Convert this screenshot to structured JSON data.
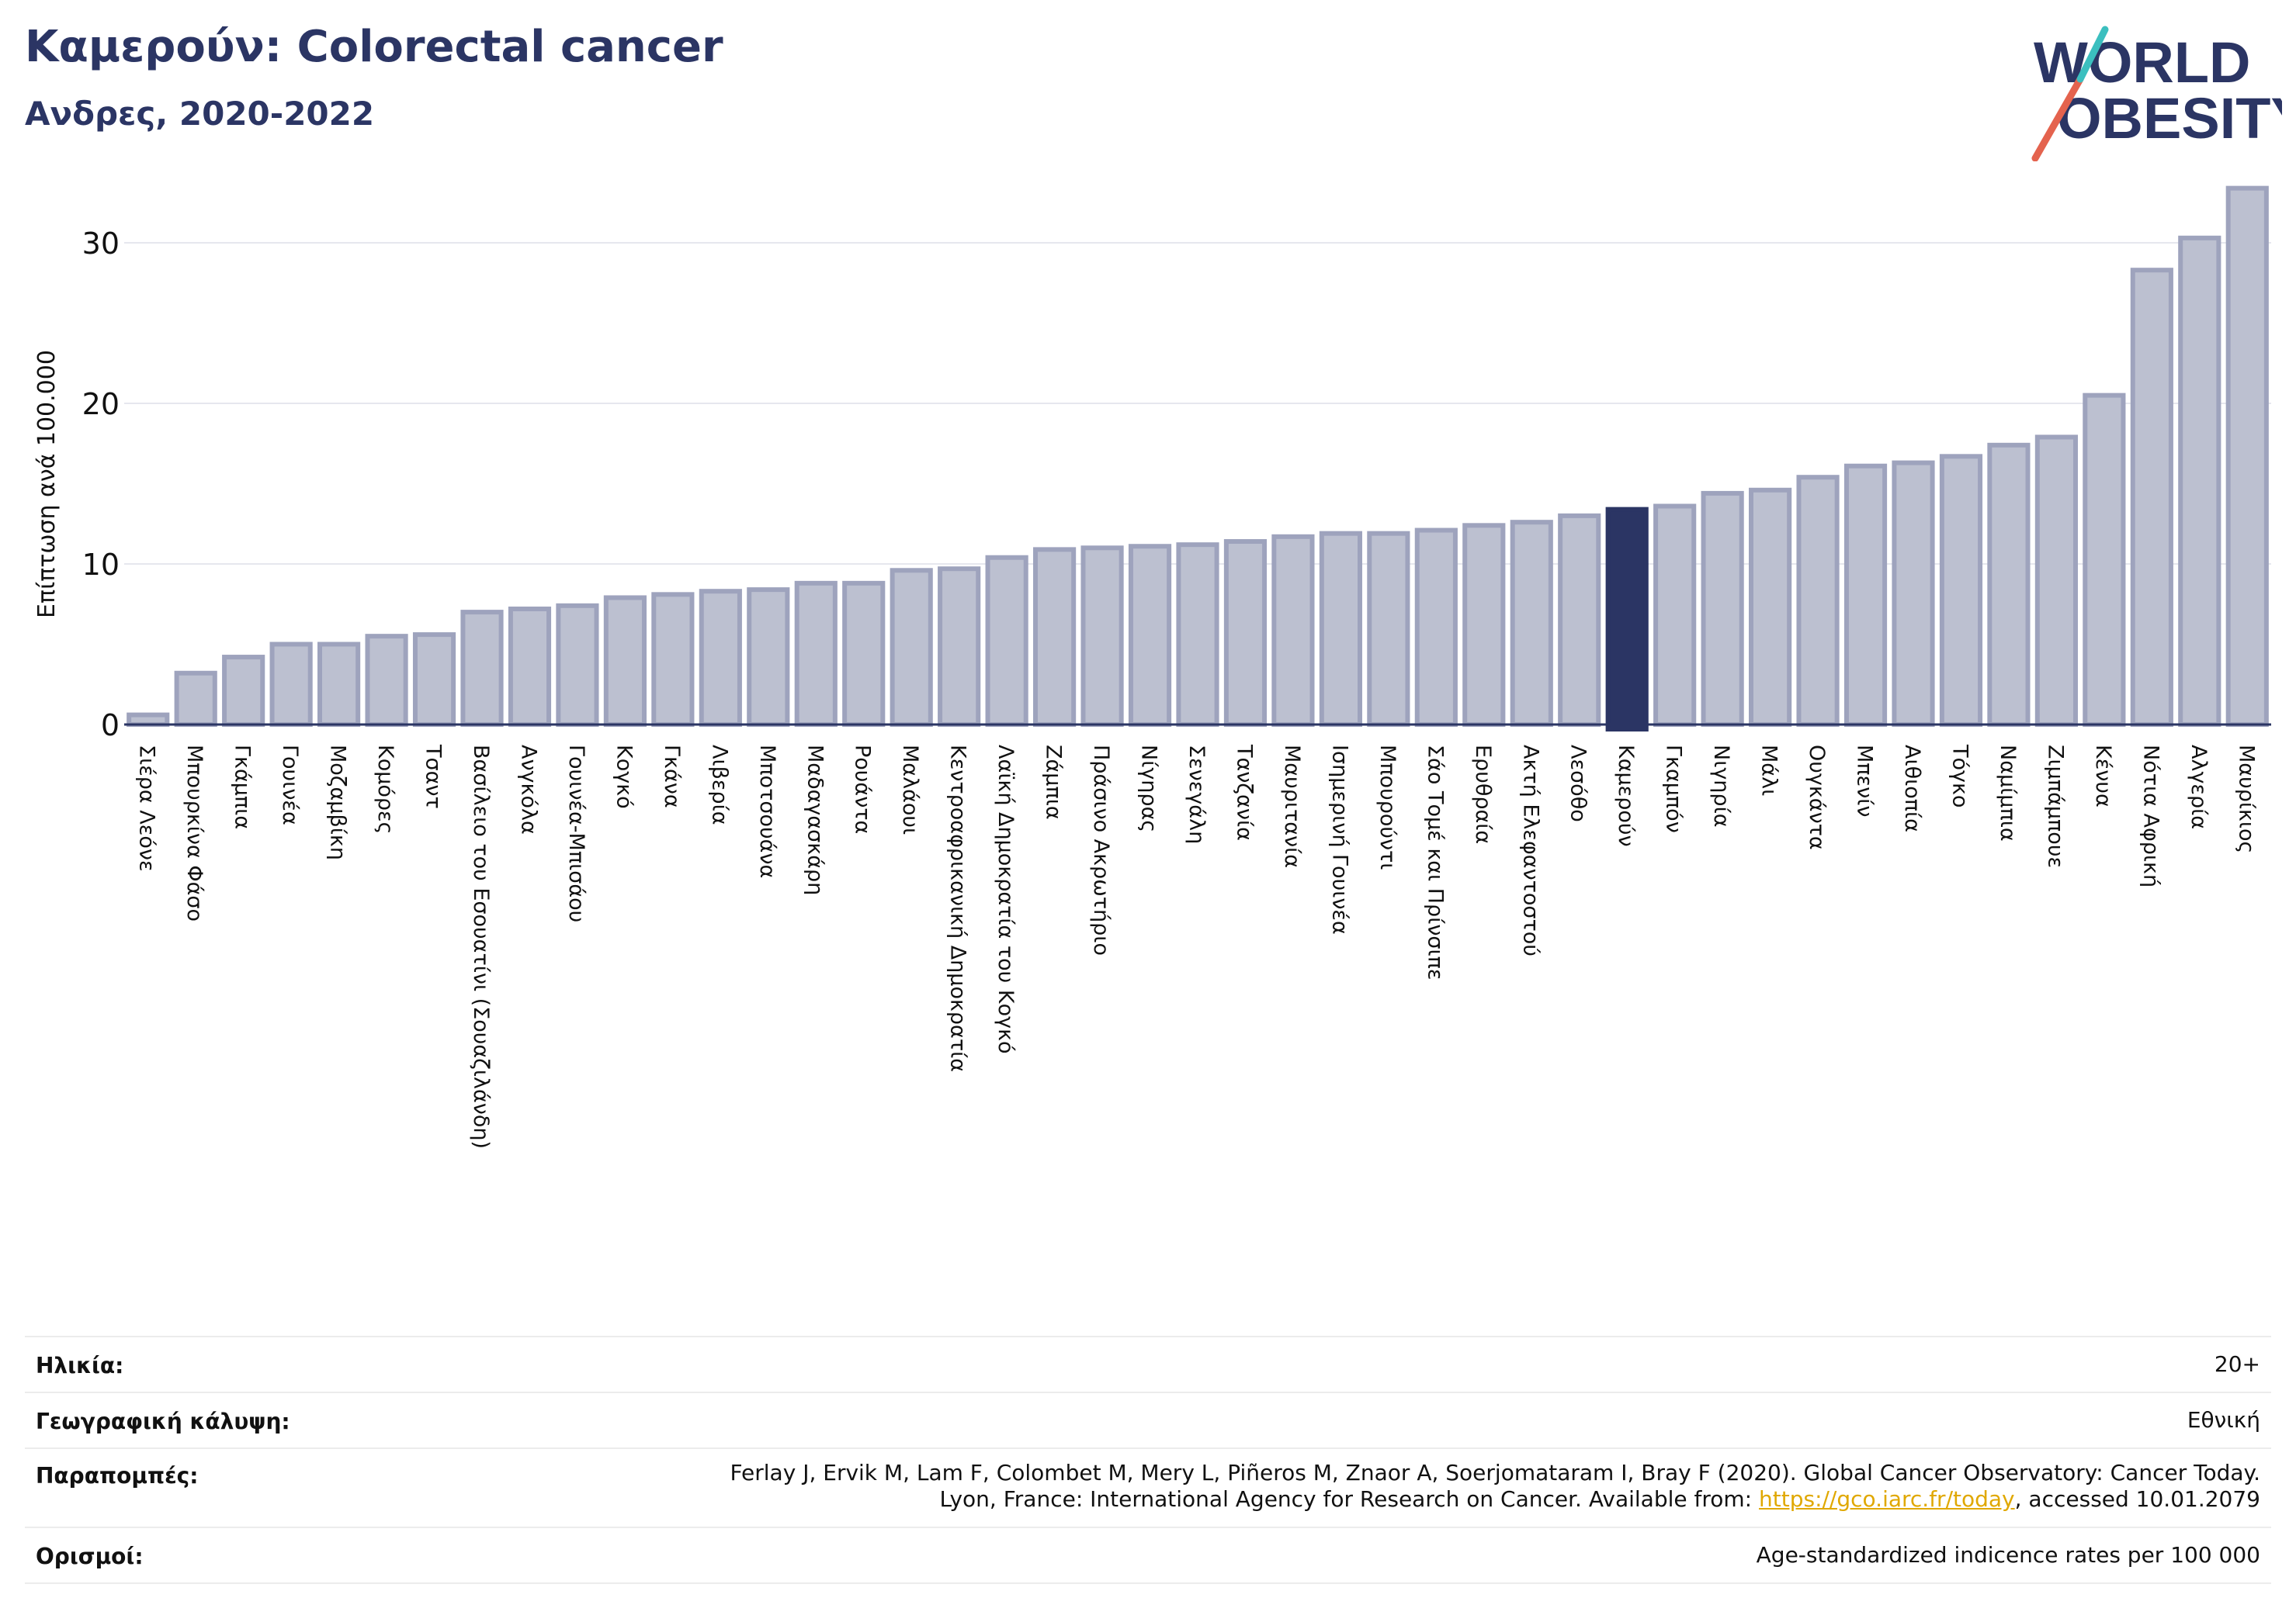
{
  "header": {
    "title": "Καμερούν: Colorectal cancer",
    "subtitle": "Ανδρες, 2020-2022"
  },
  "logo": {
    "line1": "WORLD",
    "line2": "OBESITY",
    "text_color": "#2b3564",
    "slash_colors": [
      "#e4634e",
      "#3bbfbf"
    ]
  },
  "chart_data": {
    "type": "bar",
    "ylabel": "Επίπτωση ανά 100.000",
    "xlabel": "",
    "ylim": [
      0,
      34
    ],
    "yticks": [
      0,
      10,
      20,
      30
    ],
    "grid": true,
    "highlight": "Καμερούν",
    "bar_color": "#bcc0d0",
    "bar_edge_color": "#9ea3bd",
    "highlight_color": "#2b3564",
    "categories": [
      "Σιέρα Λεόνε",
      "Μπουρκίνα Φάσο",
      "Γκάμπια",
      "Γουινέα",
      "Μοζαμβίκη",
      "Κομόρες",
      "Τσαντ",
      "Βασίλειο του Εσουατίνι (Σουαζιλάνδη)",
      "Ανγκόλα",
      "Γουινέα-Μπισάου",
      "Κογκό",
      "Γκάνα",
      "Λιβερία",
      "Μποτσουάνα",
      "Μαδαγασκάρη",
      "Ρουάντα",
      "Μαλάουι",
      "Κεντροαφρικανική Δημοκρατία",
      "Λαϊκή Δημοκρατία του Κογκό",
      "Ζάμπια",
      "Πράσινο Ακρωτήριο",
      "Νίγηρας",
      "Σενεγάλη",
      "Τανζανία",
      "Μαυριτανία",
      "Ισημερινή Γουινέα",
      "Μπουρούντι",
      "Σάο Τομέ και Πρίνσιπε",
      "Ερυθραία",
      "Ακτή Ελεφαντοστού",
      "Λεσόθο",
      "Καμερούν",
      "Γκαμπόν",
      "Νιγηρία",
      "Μάλι",
      "Ουγκάντα",
      "Μπενίν",
      "Αιθιοπία",
      "Τόγκο",
      "Ναμίμπια",
      "Ζιμπάμπουε",
      "Κένυα",
      "Νότια Αφρική",
      "Αλγερία",
      "Μαυρίκιος"
    ],
    "values": [
      0.6,
      3.2,
      4.2,
      5.0,
      5.0,
      5.5,
      5.6,
      7.0,
      7.2,
      7.4,
      7.9,
      8.1,
      8.3,
      8.4,
      8.8,
      8.8,
      9.6,
      9.7,
      10.4,
      10.9,
      11.0,
      11.1,
      11.2,
      11.4,
      11.7,
      11.9,
      11.9,
      12.1,
      12.4,
      12.6,
      13.0,
      13.4,
      13.6,
      14.4,
      14.6,
      15.4,
      16.1,
      16.3,
      16.7,
      17.4,
      17.9,
      20.5,
      28.3,
      30.3,
      33.4
    ]
  },
  "info": {
    "age": {
      "label": "Ηλικία:",
      "value": "20+"
    },
    "coverage": {
      "label": "Γεωγραφική κάλυψη:",
      "value": "Εθνική"
    },
    "references": {
      "label": "Παραπομπές:",
      "line1": "Ferlay J, Ervik M, Lam F, Colombet M, Mery L, Piñeros M, Znaor A, Soerjomataram I, Bray F (2020). Global Cancer Observatory: Cancer Today.",
      "line2_prefix": "Lyon, France: International Agency for Research on Cancer. Available from: ",
      "link": "https://gco.iarc.fr/today",
      "line2_suffix": ", accessed 10.01.2079"
    },
    "definitions": {
      "label": "Ορισμοί:",
      "value": "Age-standardized indicence rates per 100 000"
    }
  }
}
